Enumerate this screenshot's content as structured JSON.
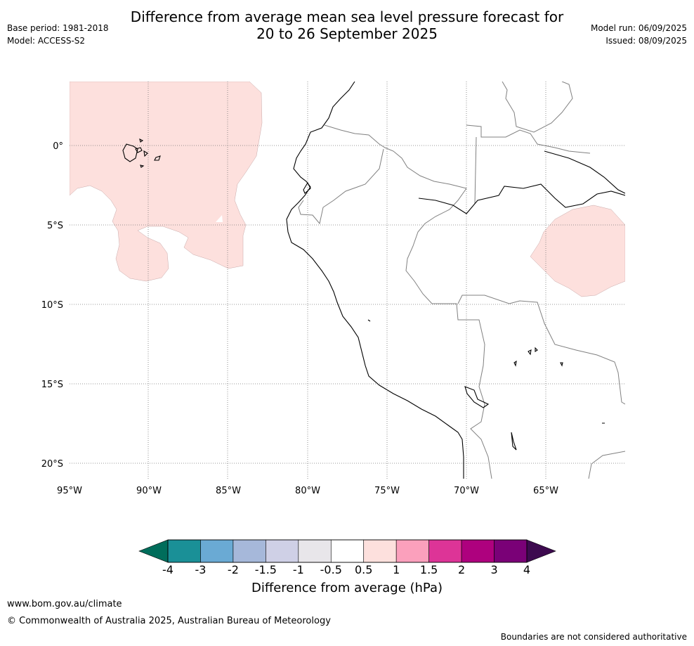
{
  "title_line1": "Difference from average mean sea level pressure forecast for",
  "title_line2": "20 to 26 September 2025",
  "meta_left": {
    "base_period": "Base period: 1981-2018",
    "model": "Model: ACCESS-S2"
  },
  "meta_right": {
    "model_run": "Model run: 06/09/2025",
    "issued": "Issued: 08/09/2025"
  },
  "map": {
    "lat_labels": [
      "0°",
      "5°S",
      "10°S",
      "15°S",
      "20°S"
    ],
    "lon_labels": [
      "95°W",
      "90°W",
      "85°W",
      "80°W",
      "75°W",
      "70°W",
      "65°W"
    ],
    "anomaly_color": "#fde0dd",
    "anomaly_range": "0.5 to 1"
  },
  "colorbar": {
    "title": "Difference from average (hPa)",
    "ticks": [
      "-4",
      "-3",
      "-2",
      "-1.5",
      "-1",
      "-0.5",
      "0.5",
      "1",
      "1.5",
      "2",
      "3",
      "4"
    ],
    "under_color": "#006d5b",
    "over_color": "#3d0a4f",
    "colors": [
      "#1a9097",
      "#6aaad4",
      "#a6b8da",
      "#cfd0e6",
      "#e8e6ea",
      "#ffffff",
      "#fde0dd",
      "#fba0bc",
      "#dd3497",
      "#ae017e",
      "#7a0177"
    ]
  },
  "footer": {
    "url": "www.bom.gov.au/climate",
    "copyright": "© Commonwealth of Australia 2025, Australian Bureau of Meteorology",
    "disclaimer": "Boundaries are not considered authoritative"
  }
}
